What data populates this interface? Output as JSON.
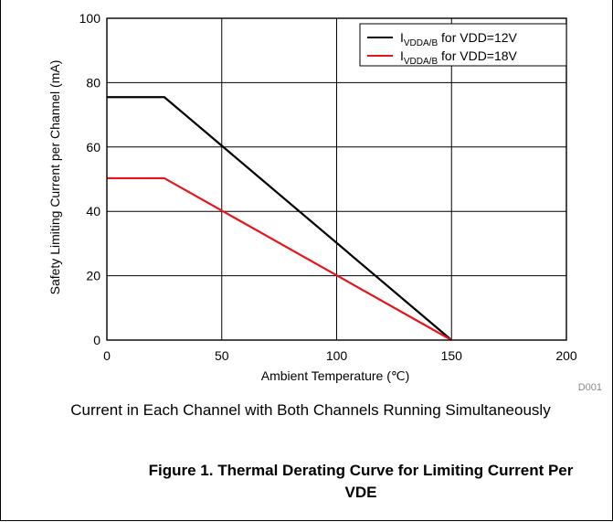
{
  "chart_data": {
    "type": "line",
    "xlabel": "Ambient Temperature (℃)",
    "ylabel": "Safety Limiting Current per Channel (mA)",
    "xlim": [
      0,
      200
    ],
    "ylim": [
      0,
      100
    ],
    "xticks": [
      0,
      50,
      100,
      150,
      200
    ],
    "yticks": [
      0,
      20,
      40,
      60,
      80,
      100
    ],
    "grid": true,
    "legend_position": "top-right",
    "code_label": "D001",
    "series": [
      {
        "name_main": "I",
        "name_sub": "VDDA/B",
        "name_rest": " for VDD=12V",
        "color": "#000000",
        "x": [
          0,
          25,
          150
        ],
        "y": [
          75.5,
          75.5,
          0
        ]
      },
      {
        "name_main": "I",
        "name_sub": "VDDA/B",
        "name_rest": " for VDD=18V",
        "color": "#e8141b",
        "x": [
          0,
          25,
          150
        ],
        "y": [
          50.3,
          50.3,
          0
        ]
      }
    ]
  },
  "caption": "Current in Each Channel with Both Channels Running Simultaneously",
  "figure_title_line1": "Figure 1. Thermal Derating Curve for Limiting Current Per",
  "figure_title_line2": "VDE"
}
